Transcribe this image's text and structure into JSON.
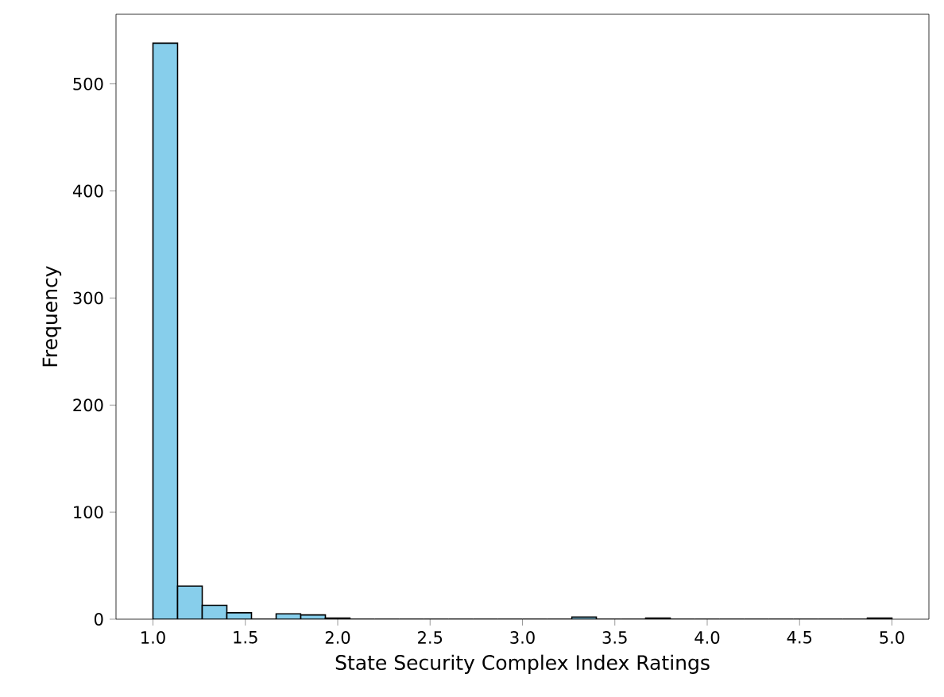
{
  "chart_data": {
    "type": "histogram",
    "xlabel": "State Security Complex Index Ratings",
    "ylabel": "Frequency",
    "color": "#87ceeb",
    "bins": [
      1.0,
      1.1333,
      1.2667,
      1.4,
      1.5333,
      1.6667,
      1.8,
      1.9333,
      2.0667,
      2.2,
      2.3333,
      2.4667,
      2.6,
      2.7333,
      2.8667,
      3.0,
      3.1333,
      3.2667,
      3.4,
      3.5333,
      3.6667,
      3.8,
      3.9333,
      4.0667,
      4.2,
      4.3333,
      4.4667,
      4.6,
      4.7333,
      4.8667,
      5.0
    ],
    "values": [
      538,
      31,
      13,
      6,
      0,
      5,
      4,
      1,
      0,
      0,
      0,
      0,
      0,
      0,
      0,
      0,
      0,
      2,
      0,
      0,
      1,
      0,
      0,
      0,
      0,
      0,
      0,
      0,
      0,
      1
    ],
    "xlim": [
      0.8,
      5.2
    ],
    "ylim": [
      0,
      565
    ],
    "xticks": [
      {
        "value": 1.0,
        "label": "1.0"
      },
      {
        "value": 1.5,
        "label": "1.5"
      },
      {
        "value": 2.0,
        "label": "2.0"
      },
      {
        "value": 2.5,
        "label": "2.5"
      },
      {
        "value": 3.0,
        "label": "3.0"
      },
      {
        "value": 3.5,
        "label": "3.5"
      },
      {
        "value": 4.0,
        "label": "4.0"
      },
      {
        "value": 4.5,
        "label": "4.5"
      },
      {
        "value": 5.0,
        "label": "5.0"
      }
    ],
    "yticks": [
      0,
      100,
      200,
      300,
      400,
      500
    ],
    "grid": false
  }
}
